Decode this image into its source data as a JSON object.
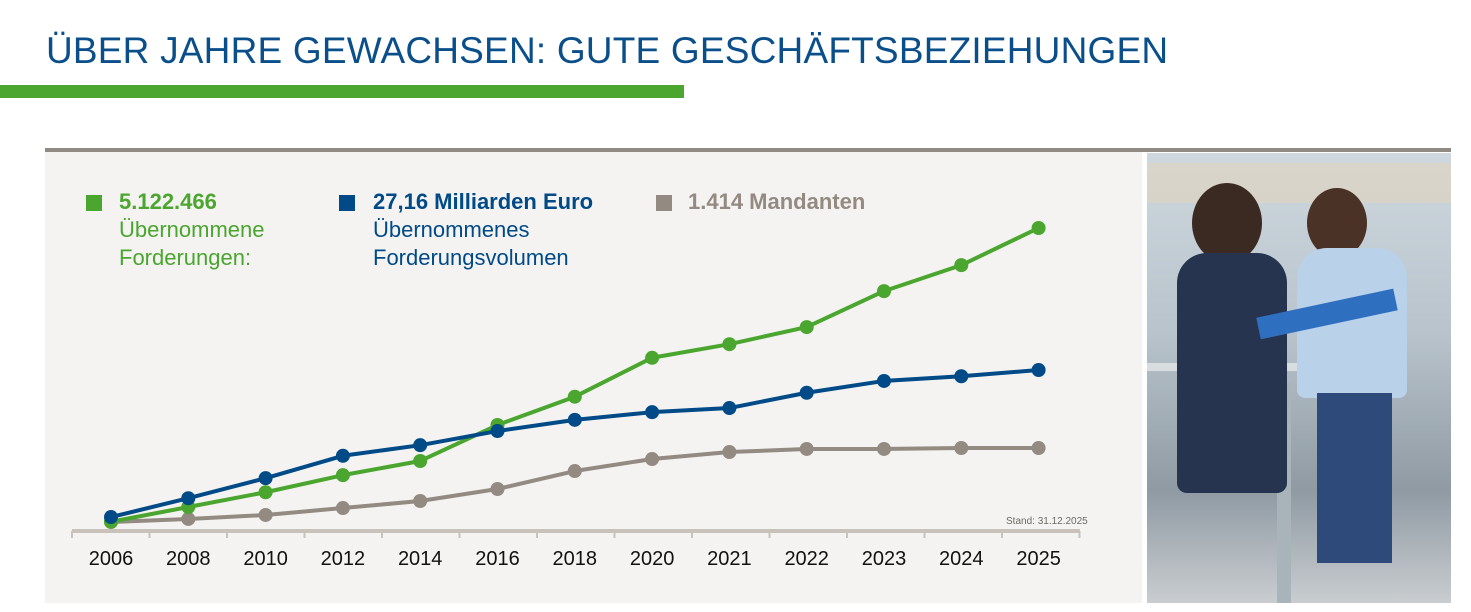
{
  "title": "ÜBER JAHRE GEWACHSEN: GUTE GESCHÄFTSBEZIEHUNGEN",
  "stand": "Stand: 31.12.2025",
  "colors": {
    "title": "#0b4f8a",
    "green": "#4aa62e",
    "blue": "#004a87",
    "grey": "#938a82",
    "axis": "#c8c2bb"
  },
  "legend": [
    {
      "value": "5.122.466",
      "line1": "Übernommene",
      "line2": "Forderungen:",
      "color": "#4aa62e"
    },
    {
      "value": "27,16 Milliarden Euro",
      "line1": "Übernommenes",
      "line2": "Forderungsvolumen",
      "color": "#004a87"
    },
    {
      "value": "1.414 Mandanten",
      "line1": "",
      "line2": "",
      "color": "#938a82"
    }
  ],
  "chart_data": {
    "type": "line",
    "categories": [
      "2006",
      "2008",
      "2010",
      "2012",
      "2014",
      "2016",
      "2018",
      "2020",
      "2021",
      "2022",
      "2023",
      "2024",
      "2025"
    ],
    "series": [
      {
        "name": "Übernommene Forderungen (Mio.)",
        "color": "#4aa62e",
        "values": [
          0.14,
          0.39,
          0.64,
          0.93,
          1.17,
          1.78,
          2.26,
          2.92,
          3.15,
          3.44,
          4.05,
          4.49,
          5.12
        ]
      },
      {
        "name": "Übernommenes Forderungsvolumen (Mrd. Euro)",
        "color": "#004a87",
        "values": [
          2.2,
          5.4,
          8.8,
          12.6,
          14.4,
          16.8,
          18.7,
          20.0,
          20.7,
          23.3,
          25.3,
          26.1,
          27.16
        ]
      },
      {
        "name": "Mandanten",
        "color": "#938a82",
        "values": [
          138,
          190,
          259,
          379,
          500,
          707,
          1017,
          1224,
          1345,
          1397,
          1397,
          1414,
          1414
        ]
      }
    ],
    "y_axis": "none (each series scaled independently)",
    "grid": false
  }
}
